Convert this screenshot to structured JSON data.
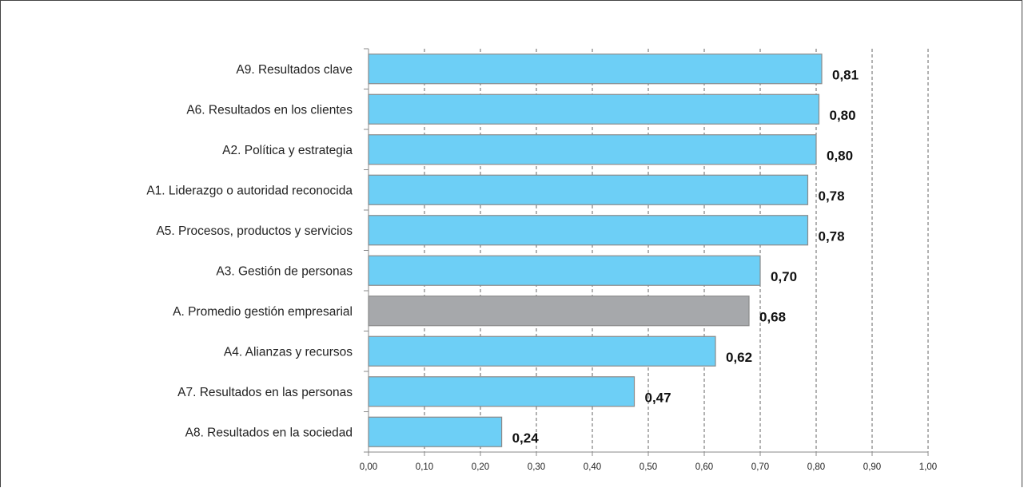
{
  "chart_data": {
    "type": "bar",
    "orientation": "horizontal",
    "title": "",
    "xlabel": "",
    "ylabel": "",
    "xlim": [
      0,
      1
    ],
    "x_ticks": [
      "0,00",
      "0,10",
      "0,20",
      "0,30",
      "0,40",
      "0,50",
      "0,60",
      "0,70",
      "0,80",
      "0,90",
      "1,00"
    ],
    "grid": "vertical-dashed",
    "colors": {
      "bar": "#6DCFF6",
      "highlight": "#A6A8AB",
      "border": "#8A8A8A"
    },
    "bars": [
      {
        "category": "A9. Resultados clave",
        "value": 0.81,
        "label": "0,81",
        "highlight": false
      },
      {
        "category": "A6. Resultados en los clientes",
        "value": 0.805,
        "label": "0,80",
        "highlight": false
      },
      {
        "category": "A2. Política y estrategia",
        "value": 0.8,
        "label": "0,80",
        "highlight": false
      },
      {
        "category": "A1. Liderazgo o autoridad reconocida",
        "value": 0.785,
        "label": "0,78",
        "highlight": false
      },
      {
        "category": "A5. Procesos, productos  y servicios",
        "value": 0.785,
        "label": "0,78",
        "highlight": false
      },
      {
        "category": "A3. Gestión de personas",
        "value": 0.7,
        "label": "0,70",
        "highlight": false
      },
      {
        "category": "A. Promedio gestión empresarial",
        "value": 0.68,
        "label": "0,68",
        "highlight": true
      },
      {
        "category": "A4. Alianzas y recursos",
        "value": 0.62,
        "label": "0,62",
        "highlight": false
      },
      {
        "category": "A7. Resultados en las personas",
        "value": 0.475,
        "label": "0,47",
        "highlight": false
      },
      {
        "category": "A8. Resultados en la sociedad",
        "value": 0.238,
        "label": "0,24",
        "highlight": false
      }
    ]
  }
}
